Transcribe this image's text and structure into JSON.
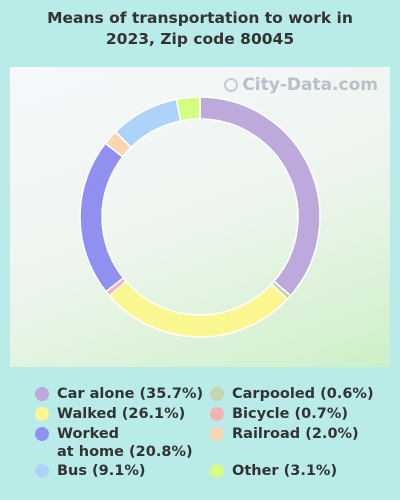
{
  "chart_data": {
    "type": "pie",
    "title": "Means of transportation to work in\n2023, Zip code 80045",
    "watermark": "City-Data.com",
    "slices": [
      {
        "label": "Car alone (35.7%)",
        "value": 35.7,
        "color": "#bda9dc"
      },
      {
        "label": "Carpooled (0.6%)",
        "value": 0.6,
        "color": "#c5d5b1"
      },
      {
        "label": "Walked (26.1%)",
        "value": 26.1,
        "color": "#fbf790"
      },
      {
        "label": "Bicycle (0.7%)",
        "value": 0.7,
        "color": "#f4b4b4"
      },
      {
        "label": "Worked\nat home (20.8%)",
        "value": 20.8,
        "color": "#9090f0"
      },
      {
        "label": "Railroad (2.0%)",
        "value": 2.0,
        "color": "#fad6b0"
      },
      {
        "label": "Bus (9.1%)",
        "value": 9.1,
        "color": "#add3fa"
      },
      {
        "label": "Other (3.1%)",
        "value": 3.1,
        "color": "#d7fc82"
      }
    ]
  }
}
